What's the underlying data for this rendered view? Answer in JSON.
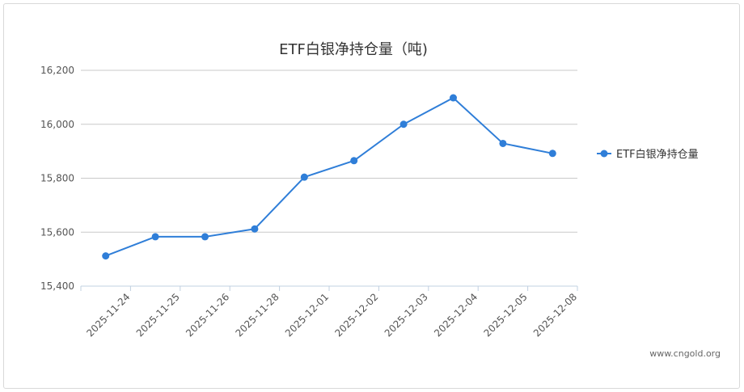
{
  "chart_data": {
    "type": "line",
    "title": "ETF白银净持仓量（吨)",
    "xlabel": "",
    "ylabel": "",
    "categories": [
      "2025-11-24",
      "2025-11-25",
      "2025-11-26",
      "2025-11-28",
      "2025-12-01",
      "2025-12-02",
      "2025-12-03",
      "2025-12-04",
      "2025-12-05",
      "2025-12-08"
    ],
    "series": [
      {
        "name": "ETF白银净持仓量",
        "values": [
          15512,
          15583,
          15583,
          15612,
          15804,
          15865,
          16000,
          16098,
          15929,
          15892
        ],
        "color": "#2f7ed8"
      }
    ],
    "ylim": [
      15400,
      16200
    ],
    "yticks": [
      15400,
      15600,
      15800,
      16000,
      16200
    ],
    "ytick_labels": [
      "15,400",
      "15,600",
      "15,800",
      "16,000",
      "16,200"
    ],
    "grid": true,
    "legend": "right"
  },
  "watermark": "www.cngold.org"
}
